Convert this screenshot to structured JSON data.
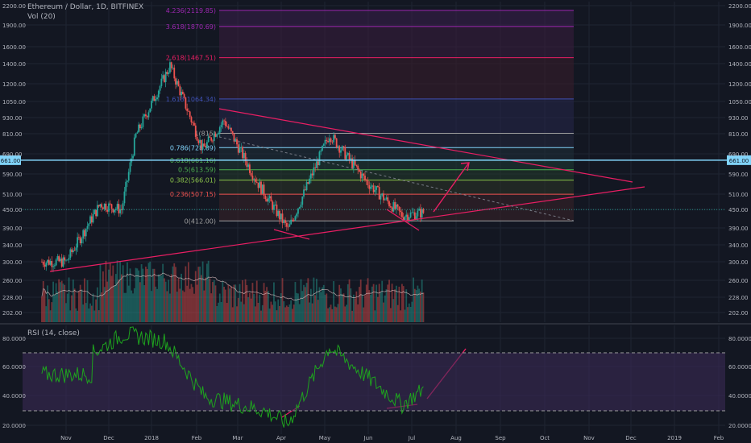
{
  "header": {
    "title": "Ethereum / Dollar, 1D, BITFINEX",
    "volume_label": "Vol (20)",
    "rsi_label": "RSI (14, close)"
  },
  "colors": {
    "background": "#131722",
    "grid": "#1f2432",
    "up": "#26a69a",
    "down": "#ef5350",
    "trendline": "#e91e63",
    "hline": "#81d4fa",
    "ma": "#e0c3c3",
    "rsi_line": "#1ea31e",
    "rsi_band": "#3b2a55",
    "price_badge": "#81d4fa"
  },
  "price_marker": {
    "value": "661.00"
  },
  "chart_data": [
    {
      "type": "candlestick",
      "title": "Ethereum / Dollar, 1D, BITFINEX",
      "x_ticks": [
        "Nov",
        "Dec",
        "2018",
        "Feb",
        "Mar",
        "Apr",
        "May",
        "Jun",
        "Jul",
        "Aug",
        "Sep",
        "Oct",
        "Nov",
        "Dec",
        "2019",
        "Feb"
      ],
      "y_scale": "log",
      "ylim": [
        180,
        2250
      ],
      "y_ticks": [
        "2200.00",
        "1900.00",
        "1600.00",
        "1400.00",
        "1200.00",
        "1050.00",
        "930.00",
        "810.00",
        "690.00",
        "590.00",
        "510.00",
        "450.00",
        "390.00",
        "340.00",
        "300.00",
        "260.00",
        "228.00",
        "202.00"
      ],
      "series_close_monthly_approx": [
        {
          "x": "2017-10-15",
          "y": 300
        },
        {
          "x": "2017-11-01",
          "y": 300
        },
        {
          "x": "2017-11-25",
          "y": 470
        },
        {
          "x": "2017-12-10",
          "y": 450
        },
        {
          "x": "2017-12-20",
          "y": 800
        },
        {
          "x": "2018-01-13",
          "y": 1380
        },
        {
          "x": "2018-02-05",
          "y": 720
        },
        {
          "x": "2018-02-20",
          "y": 900
        },
        {
          "x": "2018-03-15",
          "y": 560
        },
        {
          "x": "2018-04-06",
          "y": 385
        },
        {
          "x": "2018-05-05",
          "y": 810
        },
        {
          "x": "2018-05-31",
          "y": 560
        },
        {
          "x": "2018-06-25",
          "y": 430
        },
        {
          "x": "2018-07-10",
          "y": 440
        }
      ],
      "fibonacci_levels": [
        {
          "label": "4.236(2119.85)",
          "price": 2119.85
        },
        {
          "label": "3.618(1870.69)",
          "price": 1870.69
        },
        {
          "label": "2.618(1467.51)",
          "price": 1467.51
        },
        {
          "label": "1.618(1064.34)",
          "price": 1064.34
        },
        {
          "label": "1(815)",
          "price": 815
        },
        {
          "label": "0.786(728.89)",
          "price": 728.89
        },
        {
          "label": "0.618(661.16)",
          "price": 661.16
        },
        {
          "label": "0.5(613.59)",
          "price": 613.59
        },
        {
          "label": "0.382(566.01)",
          "price": 566.01
        },
        {
          "label": "0.236(507.15)",
          "price": 507.15
        },
        {
          "label": "0(412.00)",
          "price": 412
        }
      ],
      "horizontal_line": 661
    },
    {
      "type": "line",
      "title": "RSI (14, close)",
      "y_ticks": [
        "80.0000",
        "60.0000",
        "40.0000",
        "20.0000"
      ],
      "ylim": [
        15,
        90
      ],
      "band": [
        30,
        70
      ],
      "series_approx": [
        {
          "x": "2017-11-20",
          "y": 70
        },
        {
          "x": "2017-12-12",
          "y": 83
        },
        {
          "x": "2018-01-10",
          "y": 78
        },
        {
          "x": "2018-02-06",
          "y": 40
        },
        {
          "x": "2018-03-20",
          "y": 30
        },
        {
          "x": "2018-04-06",
          "y": 21
        },
        {
          "x": "2018-05-05",
          "y": 74
        },
        {
          "x": "2018-06-25",
          "y": 34
        },
        {
          "x": "2018-07-10",
          "y": 45
        }
      ]
    }
  ]
}
